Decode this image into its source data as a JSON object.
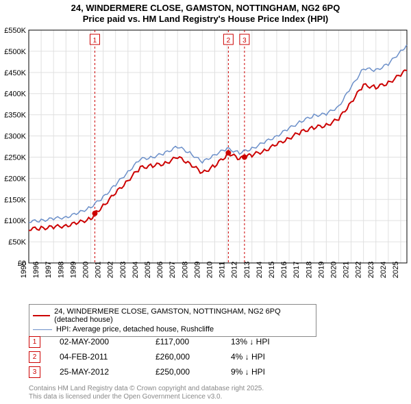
{
  "title_line1": "24, WINDERMERE CLOSE, GAMSTON, NOTTINGHAM, NG2 6PQ",
  "title_line2": "Price paid vs. HM Land Registry's House Price Index (HPI)",
  "chart": {
    "type": "line",
    "background_color": "#ffffff",
    "grid_color": "#e0e0e0",
    "axis_color": "#000000",
    "tick_fontsize": 11,
    "x_min": 1995,
    "x_max": 2025.5,
    "x_ticks": [
      1995,
      1996,
      1997,
      1998,
      1999,
      2000,
      2001,
      2002,
      2003,
      2004,
      2005,
      2006,
      2007,
      2008,
      2009,
      2010,
      2011,
      2012,
      2013,
      2014,
      2015,
      2016,
      2017,
      2018,
      2019,
      2020,
      2021,
      2022,
      2023,
      2024,
      2025
    ],
    "y_min": 0,
    "y_max": 550000,
    "y_tick_step": 50000,
    "y_tick_labels": [
      "£0",
      "£50K",
      "£100K",
      "£150K",
      "£200K",
      "£250K",
      "£300K",
      "£350K",
      "£400K",
      "£450K",
      "£500K",
      "£550K"
    ],
    "series": [
      {
        "name": "price_paid",
        "label": "24, WINDERMERE CLOSE, GAMSTON, NOTTINGHAM, NG2 6PQ (detached house)",
        "color": "#cc0000",
        "line_width": 2,
        "data": [
          [
            1995,
            80000
          ],
          [
            1996,
            82000
          ],
          [
            1997,
            85000
          ],
          [
            1998,
            88000
          ],
          [
            1999,
            95000
          ],
          [
            2000,
            105000
          ],
          [
            2000.33,
            117000
          ],
          [
            2001,
            135000
          ],
          [
            2002,
            165000
          ],
          [
            2003,
            195000
          ],
          [
            2004,
            225000
          ],
          [
            2005,
            230000
          ],
          [
            2006,
            235000
          ],
          [
            2007,
            250000
          ],
          [
            2008,
            235000
          ],
          [
            2009,
            212000
          ],
          [
            2010,
            230000
          ],
          [
            2011,
            255000
          ],
          [
            2011.1,
            260000
          ],
          [
            2012,
            245000
          ],
          [
            2012.4,
            250000
          ],
          [
            2013,
            255000
          ],
          [
            2014,
            265000
          ],
          [
            2015,
            280000
          ],
          [
            2016,
            295000
          ],
          [
            2017,
            310000
          ],
          [
            2018,
            320000
          ],
          [
            2019,
            325000
          ],
          [
            2020,
            340000
          ],
          [
            2021,
            380000
          ],
          [
            2022,
            420000
          ],
          [
            2023,
            415000
          ],
          [
            2024,
            425000
          ],
          [
            2025,
            445000
          ],
          [
            2025.5,
            455000
          ]
        ]
      },
      {
        "name": "hpi",
        "label": "HPI: Average price, detached house, Rushcliffe",
        "color": "#6b8fc9",
        "line_width": 1.5,
        "data": [
          [
            1995,
            98000
          ],
          [
            1996,
            100000
          ],
          [
            1997,
            105000
          ],
          [
            1998,
            108000
          ],
          [
            1999,
            118000
          ],
          [
            2000,
            132000
          ],
          [
            2001,
            155000
          ],
          [
            2002,
            185000
          ],
          [
            2003,
            215000
          ],
          [
            2004,
            245000
          ],
          [
            2005,
            250000
          ],
          [
            2006,
            260000
          ],
          [
            2007,
            275000
          ],
          [
            2008,
            260000
          ],
          [
            2009,
            238000
          ],
          [
            2010,
            256000
          ],
          [
            2011,
            270000
          ],
          [
            2012,
            260000
          ],
          [
            2013,
            270000
          ],
          [
            2014,
            285000
          ],
          [
            2015,
            300000
          ],
          [
            2016,
            318000
          ],
          [
            2017,
            335000
          ],
          [
            2018,
            348000
          ],
          [
            2019,
            352000
          ],
          [
            2020,
            370000
          ],
          [
            2021,
            415000
          ],
          [
            2022,
            460000
          ],
          [
            2023,
            455000
          ],
          [
            2024,
            470000
          ],
          [
            2025,
            500000
          ],
          [
            2025.5,
            515000
          ]
        ]
      }
    ],
    "sale_markers": {
      "color": "#cc0000",
      "box_border": "#cc0000",
      "dash_color": "#cc0000",
      "items": [
        {
          "num": "1",
          "year": 2000.33,
          "price": 117000,
          "date": "02-MAY-2000",
          "price_str": "£117,000",
          "diff": "13% ↓ HPI",
          "label_y": 35000
        },
        {
          "num": "2",
          "year": 2011.1,
          "price": 260000,
          "date": "04-FEB-2011",
          "price_str": "£260,000",
          "diff": "4% ↓ HPI",
          "label_y": 35000
        },
        {
          "num": "3",
          "year": 2012.4,
          "price": 250000,
          "date": "25-MAY-2012",
          "price_str": "£250,000",
          "diff": "9% ↓ HPI",
          "label_y": 35000
        }
      ]
    }
  },
  "legend": {
    "border_color": "#888888"
  },
  "footer_line1": "Contains HM Land Registry data © Crown copyright and database right 2025.",
  "footer_line2": "This data is licensed under the Open Government Licence v3.0."
}
